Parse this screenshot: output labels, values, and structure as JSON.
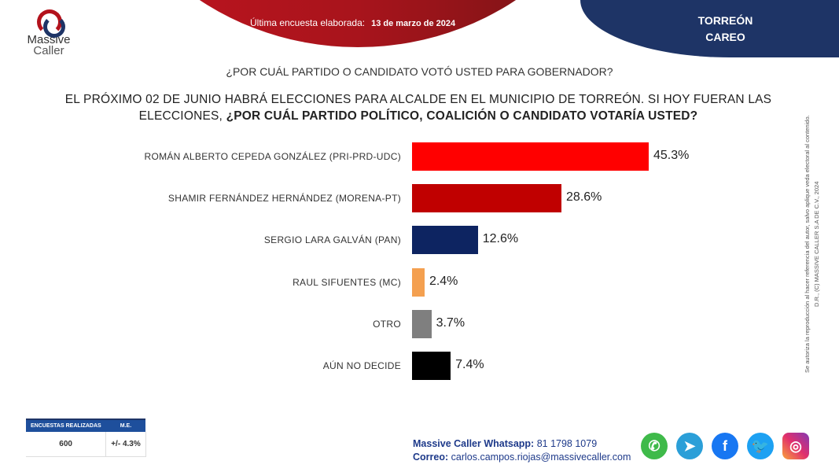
{
  "header": {
    "logo_text": [
      "Massive",
      "Caller"
    ],
    "survey_label": "Última encuesta elaborada:",
    "survey_date": "13 de marzo de 2024",
    "place": [
      "TORREÓN",
      "CAREO"
    ]
  },
  "question_1": "¿POR CUÁL PARTIDO O CANDIDATO VOTÓ USTED PARA GOBERNADOR?",
  "question_2": {
    "normal": "EL PRÓXIMO 02 DE JUNIO HABRÁ ELECCIONES PARA ALCALDE EN EL MUNICIPIO  DE TORREÓN. SI HOY FUERAN LAS ELECCIONES, ",
    "bold": "¿POR CUÁL PARTIDO POLÍTICO, COALICIÓN O CANDIDATO  VOTARÍA USTED?"
  },
  "legal": [
    "D.R., (C) MASSIVE CALLER S.A DE C.V., 2024",
    "Se autoriza la reproducción al hacer referencia del autor, salvo aplique veda electoral al contenido."
  ],
  "chart_data": {
    "type": "bar",
    "orientation": "horizontal",
    "categories": [
      "ROMÁN ALBERTO CEPEDA GONZÁLEZ (PRI-PRD-UDC)",
      "SHAMIR FERNÁNDEZ HERNÁNDEZ (MORENA-PT)",
      "SERGIO LARA GALVÁN (PAN)",
      "RAUL SIFUENTES (MC)",
      "OTRO",
      "AÚN NO DECIDE"
    ],
    "values": [
      45.3,
      28.6,
      12.6,
      2.4,
      3.7,
      7.4
    ],
    "data_labels": [
      "45.3%",
      "28.6%",
      "12.6%",
      "2.4%",
      "3.7%",
      "7.4%"
    ],
    "colors": [
      "#ff0000",
      "#c00000",
      "#0d2461",
      "#f4a050",
      "#7f7f7f",
      "#000000"
    ],
    "grid": false
  },
  "stats": {
    "headers": [
      "ENCUESTAS REALIZADAS",
      "M.E."
    ],
    "values": [
      "600",
      "+/- 4.3%"
    ]
  },
  "contact": {
    "whatsapp_label": "Massive Caller Whatsapp:",
    "whatsapp": "81 1798 1079",
    "email_label": "Correo:",
    "email": "carlos.campos.riojas@massivecaller.com"
  },
  "social_icons": [
    "whatsapp-icon",
    "telegram-icon",
    "facebook-icon",
    "twitter-icon",
    "instagram-icon"
  ]
}
